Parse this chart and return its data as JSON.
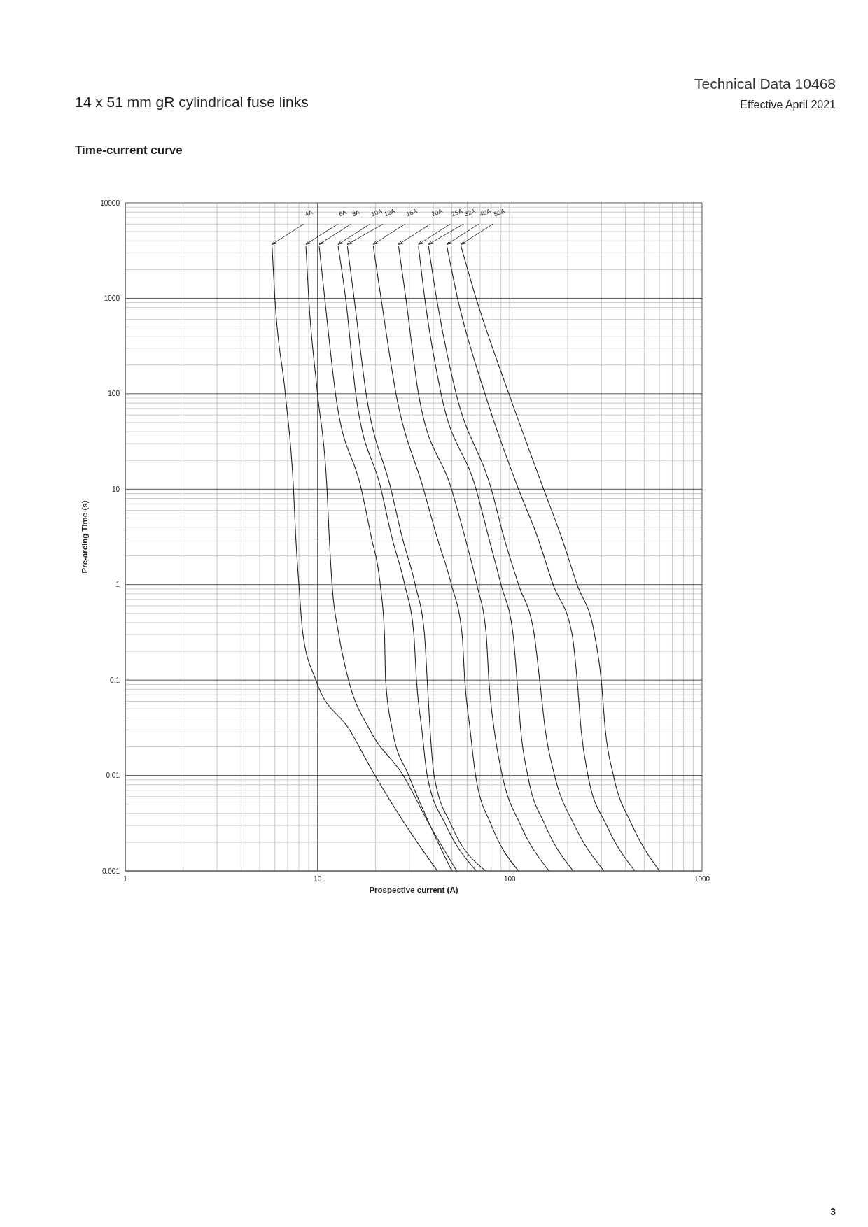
{
  "chart_data": {
    "type": "line",
    "title": "14 x 51 mm gR cylindrical fuse links",
    "subtitle": "Time-current curve",
    "xlabel": "Prospective current (A)",
    "ylabel": "Pre-arcing Time (s)",
    "annotations": [
      "Technical Data 10468",
      "Effective April 2021",
      "3"
    ],
    "log": "xy",
    "grid": true,
    "xlim": [
      1,
      1000
    ],
    "ylim": [
      0.001,
      10000
    ],
    "xticks": [
      1,
      {
        "value": 2,
        "label": null
      },
      {
        "value": 3,
        "label": null
      },
      {
        "value": 4,
        "label": null
      },
      {
        "value": 5,
        "label": null
      },
      {
        "value": 6,
        "label": null
      },
      {
        "value": 7,
        "label": null
      },
      {
        "value": 8,
        "label": null
      },
      {
        "value": 9,
        "label": null
      },
      10,
      {
        "value": 20,
        "label": null
      },
      {
        "value": 30,
        "label": null
      },
      {
        "value": 40,
        "label": null
      },
      {
        "value": 50,
        "label": null
      },
      {
        "value": 60,
        "label": null
      },
      {
        "value": 70,
        "label": null
      },
      {
        "value": 80,
        "label": null
      },
      {
        "value": 90,
        "label": null
      },
      100,
      {
        "value": 200,
        "label": null
      },
      {
        "value": 300,
        "label": null
      },
      {
        "value": 400,
        "label": null
      },
      {
        "value": 500,
        "label": null
      },
      {
        "value": 600,
        "label": null
      },
      {
        "value": 700,
        "label": null
      },
      {
        "value": 800,
        "label": null
      },
      {
        "value": 900,
        "label": null
      },
      1000
    ],
    "yticks": [
      0.001,
      {
        "value": 0.002,
        "label": null
      },
      {
        "value": 0.003,
        "label": null
      },
      {
        "value": 0.004,
        "label": null
      },
      {
        "value": 0.005,
        "label": null
      },
      {
        "value": 0.006,
        "label": null
      },
      {
        "value": 0.007,
        "label": null
      },
      {
        "value": 0.008,
        "label": null
      },
      {
        "value": 0.009,
        "label": null
      },
      0.01,
      {
        "value": 0.02,
        "label": null
      },
      {
        "value": 0.03,
        "label": null
      },
      {
        "value": 0.04,
        "label": null
      },
      {
        "value": 0.05,
        "label": null
      },
      {
        "value": 0.06,
        "label": null
      },
      {
        "value": 0.07,
        "label": null
      },
      {
        "value": 0.08,
        "label": null
      },
      {
        "value": 0.09,
        "label": null
      },
      0.1,
      {
        "value": 0.2,
        "label": null
      },
      {
        "value": 0.3,
        "label": null
      },
      {
        "value": 0.4,
        "label": null
      },
      {
        "value": 0.5,
        "label": null
      },
      {
        "value": 0.6,
        "label": null
      },
      {
        "value": 0.7,
        "label": null
      },
      {
        "value": 0.8,
        "label": null
      },
      {
        "value": 0.9,
        "label": null
      },
      1,
      {
        "value": 2,
        "label": null
      },
      {
        "value": 3,
        "label": null
      },
      {
        "value": 4,
        "label": null
      },
      {
        "value": 5,
        "label": null
      },
      {
        "value": 6,
        "label": null
      },
      {
        "value": 7,
        "label": null
      },
      {
        "value": 8,
        "label": null
      },
      {
        "value": 9,
        "label": null
      },
      10,
      {
        "value": 20,
        "label": null
      },
      {
        "value": 30,
        "label": null
      },
      {
        "value": 40,
        "label": null
      },
      {
        "value": 50,
        "label": null
      },
      {
        "value": 60,
        "label": null
      },
      {
        "value": 70,
        "label": null
      },
      {
        "value": 80,
        "label": null
      },
      {
        "value": 90,
        "label": null
      },
      100,
      {
        "value": 200,
        "label": null
      },
      {
        "value": 300,
        "label": null
      },
      {
        "value": 400,
        "label": null
      },
      {
        "value": 500,
        "label": null
      },
      {
        "value": 600,
        "label": null
      },
      {
        "value": 700,
        "label": null
      },
      {
        "value": 800,
        "label": null
      },
      {
        "value": 900,
        "label": null
      },
      1000,
      {
        "value": 2000,
        "label": null
      },
      {
        "value": 3000,
        "label": null
      },
      {
        "value": 4000,
        "label": null
      },
      {
        "value": 5000,
        "label": null
      },
      {
        "value": 6000,
        "label": null
      },
      {
        "value": 7000,
        "label": null
      },
      {
        "value": 8000,
        "label": null
      },
      {
        "value": 9000,
        "label": null
      },
      10000
    ],
    "series": [
      {
        "name": "4A",
        "color": "#222222",
        "x": [
          5.8,
          6.0,
          6.8,
          7.5,
          7.7,
          8.0,
          8.4,
          9.8,
          14.7,
          19.9,
          28.8,
          42
        ],
        "values": [
          3500,
          1000,
          100,
          10,
          3.2,
          1,
          0.3,
          0.1,
          0.03,
          0.01,
          0.003,
          0.001
        ]
      },
      {
        "name": "6A",
        "color": "#222222",
        "x": [
          8.7,
          9.0,
          10,
          11.2,
          11.5,
          11.9,
          12.9,
          14.5,
          18.7,
          27.9,
          38.4,
          53
        ],
        "values": [
          3500,
          1000,
          100,
          10,
          3.2,
          1,
          0.3,
          0.1,
          0.03,
          0.01,
          0.003,
          0.001
        ]
      },
      {
        "name": "8A",
        "color": "#222222",
        "x": [
          10.2,
          10.9,
          12.4,
          16.9,
          19.0,
          21.2,
          22.3,
          22.6,
          24.5,
          29.8,
          38.5,
          50
        ],
        "values": [
          3500,
          1000,
          100,
          10,
          3.2,
          1,
          0.3,
          0.1,
          0.03,
          0.01,
          0.003,
          0.001
        ]
      },
      {
        "name": "10A",
        "color": "#222222",
        "x": [
          12.8,
          14.0,
          15.8,
          21.4,
          24.3,
          28.4,
          31.7,
          32.7,
          34.9,
          37.2,
          46.6,
          67
        ],
        "values": [
          3500,
          1000,
          100,
          10,
          3.2,
          1,
          0.3,
          0.1,
          0.03,
          0.01,
          0.003,
          0.001
        ]
      },
      {
        "name": "12A",
        "color": "#222222",
        "x": [
          14.3,
          15.5,
          17.9,
          24.1,
          27.5,
          32.2,
          36,
          37.2,
          38.5,
          40.4,
          49.7,
          75
        ],
        "values": [
          3500,
          1000,
          100,
          10,
          3.2,
          1,
          0.3,
          0.1,
          0.03,
          0.01,
          0.003,
          0.001
        ]
      },
      {
        "name": "16A",
        "color": "#222222",
        "x": [
          19.5,
          21.4,
          25.6,
          35.6,
          41.7,
          49.7,
          56.5,
          58.3,
          62.2,
          66.4,
          80.3,
          111
        ],
        "values": [
          3500,
          1000,
          100,
          10,
          3.2,
          1,
          0.3,
          0.1,
          0.03,
          0.01,
          0.003,
          0.001
        ]
      },
      {
        "name": "20A",
        "color": "#222222",
        "x": [
          26.4,
          28.8,
          33.5,
          49.8,
          58.3,
          67.4,
          75.4,
          77.8,
          83,
          91.4,
          114,
          160
        ],
        "values": [
          3500,
          1000,
          100,
          10,
          3.2,
          1,
          0.3,
          0.1,
          0.03,
          0.01,
          0.003,
          0.001
        ]
      },
      {
        "name": "25A",
        "color": "#222222",
        "x": [
          33.5,
          36.1,
          43.9,
          66.8,
          77.4,
          90,
          104,
          109,
          114,
          124,
          153,
          214
        ],
        "values": [
          3500,
          1000,
          100,
          10,
          3.2,
          1,
          0.3,
          0.1,
          0.03,
          0.01,
          0.003,
          0.001
        ]
      },
      {
        "name": "32A",
        "color": "#222222",
        "x": [
          37.8,
          41.6,
          52.6,
          80.2,
          92.9,
          111,
          134,
          143,
          153,
          171,
          217,
          309
        ],
        "values": [
          3500,
          1000,
          100,
          10,
          3.2,
          1,
          0.3,
          0.1,
          0.03,
          0.01,
          0.003,
          0.001
        ]
      },
      {
        "name": "40A",
        "color": "#222222",
        "x": [
          47.1,
          53.5,
          74.3,
          111,
          139,
          168,
          211,
          224,
          235,
          255,
          319,
          447
        ],
        "values": [
          3500,
          1000,
          100,
          10,
          3.2,
          1,
          0.3,
          0.1,
          0.03,
          0.01,
          0.003,
          0.001
        ]
      },
      {
        "name": "50A",
        "color": "#222222",
        "x": [
          55.8,
          66.8,
          98.9,
          150,
          185,
          224,
          276,
          299,
          314,
          346,
          433,
          601
        ],
        "values": [
          3500,
          1000,
          100,
          10,
          3.2,
          1,
          0.3,
          0.1,
          0.03,
          0.01,
          0.003,
          0.001
        ]
      }
    ]
  }
}
